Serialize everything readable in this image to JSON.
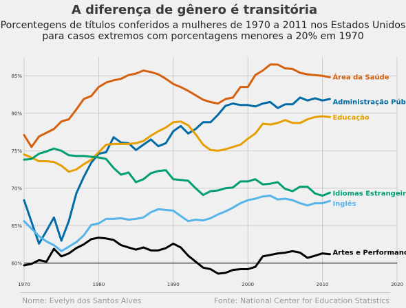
{
  "header": {
    "title": "A diferença de gênero é transitória",
    "subtitle_line1": "Porcentegens de títulos conferidos a mulheres de 1970 a 2011 nos Estados Unidos",
    "subtitle_line2": "para casos extremos com porcentagens menores a 20% em 1970"
  },
  "footer": {
    "left": "Nome: Evelyn dos Santos Alves",
    "right": "Fonte: National Center for Education Statistics"
  },
  "chart_data": {
    "type": "line",
    "xlim": [
      1970,
      2020
    ],
    "ylim": [
      57.5,
      87.5
    ],
    "x_ticks": [
      "1970",
      "1980",
      "1990",
      "2000",
      "2010",
      "2020"
    ],
    "y_ticks": [
      "60%",
      "65%",
      "70%",
      "75%",
      "80%",
      "85%"
    ],
    "grid": true,
    "years": [
      1970,
      1971,
      1972,
      1973,
      1974,
      1975,
      1976,
      1977,
      1978,
      1979,
      1980,
      1981,
      1982,
      1983,
      1984,
      1985,
      1986,
      1987,
      1988,
      1989,
      1990,
      1991,
      1992,
      1993,
      1994,
      1995,
      1996,
      1997,
      1998,
      1999,
      2000,
      2001,
      2002,
      2003,
      2004,
      2005,
      2006,
      2007,
      2008,
      2009,
      2010,
      2011
    ],
    "series": [
      {
        "name": "Área da Saúde",
        "color": "#d5600e",
        "values": [
          77.1,
          75.5,
          76.9,
          77.4,
          77.9,
          78.9,
          79.2,
          80.5,
          81.9,
          82.3,
          83.5,
          84.1,
          84.4,
          84.6,
          85.1,
          85.3,
          85.7,
          85.5,
          85.2,
          84.6,
          83.9,
          83.5,
          83.0,
          82.4,
          81.8,
          81.5,
          81.3,
          81.9,
          82.1,
          83.5,
          83.5,
          85.1,
          85.7,
          86.5,
          86.5,
          86.0,
          85.9,
          85.4,
          85.2,
          85.1,
          85.0,
          84.8
        ]
      },
      {
        "name": "Administração Pública",
        "color": "#006ba4",
        "values": [
          68.4,
          65.5,
          62.6,
          64.3,
          66.1,
          63.0,
          65.6,
          69.3,
          71.5,
          73.4,
          74.6,
          74.8,
          76.8,
          76.1,
          76.0,
          75.1,
          75.8,
          76.5,
          75.6,
          76.0,
          77.6,
          78.3,
          77.3,
          77.9,
          78.8,
          78.8,
          79.8,
          81.0,
          81.3,
          81.1,
          81.1,
          80.9,
          81.3,
          81.5,
          80.7,
          81.2,
          81.2,
          82.1,
          81.7,
          82.0,
          81.7,
          81.9
        ]
      },
      {
        "name": "Educação",
        "color": "#e69f00",
        "values": [
          74.5,
          74.1,
          73.6,
          73.6,
          73.5,
          73.0,
          72.2,
          72.5,
          73.2,
          73.8,
          74.8,
          75.8,
          75.9,
          75.9,
          75.9,
          76.0,
          76.3,
          77.0,
          77.6,
          78.1,
          78.8,
          78.9,
          78.4,
          77.2,
          75.8,
          75.1,
          75.0,
          75.2,
          75.5,
          75.8,
          76.6,
          77.3,
          78.6,
          78.5,
          78.7,
          79.1,
          78.7,
          78.7,
          79.2,
          79.5,
          79.6,
          79.5
        ]
      },
      {
        "name": "Idiomas Estrangeiros",
        "color": "#009e73",
        "values": [
          73.8,
          73.9,
          74.6,
          74.9,
          75.3,
          75.0,
          74.4,
          74.3,
          74.3,
          74.2,
          74.1,
          73.9,
          72.7,
          71.8,
          72.1,
          70.8,
          71.2,
          72.0,
          72.3,
          72.4,
          71.2,
          71.1,
          71.0,
          70.0,
          69.1,
          69.6,
          69.7,
          70.0,
          70.1,
          70.9,
          70.9,
          71.2,
          70.5,
          70.6,
          70.8,
          69.9,
          69.6,
          70.2,
          70.2,
          69.3,
          69.0,
          69.4
        ]
      },
      {
        "name": "Inglês",
        "color": "#56b4e9",
        "values": [
          65.6,
          64.6,
          63.6,
          62.9,
          62.4,
          61.6,
          62.2,
          62.8,
          63.7,
          65.1,
          65.3,
          65.9,
          65.9,
          66.0,
          65.8,
          65.9,
          66.1,
          66.8,
          67.2,
          67.1,
          67.0,
          66.3,
          65.6,
          65.8,
          65.7,
          66.0,
          66.5,
          66.9,
          67.4,
          68.0,
          68.4,
          68.6,
          68.9,
          69.0,
          68.5,
          68.6,
          68.4,
          68.0,
          67.7,
          68.0,
          68.0,
          68.3
        ]
      },
      {
        "name": "Artes e Performance",
        "color": "#000000",
        "values": [
          59.7,
          59.9,
          60.4,
          60.2,
          61.9,
          60.9,
          61.3,
          62.0,
          62.5,
          63.2,
          63.4,
          63.3,
          63.1,
          62.4,
          62.1,
          61.8,
          62.1,
          61.7,
          61.7,
          62.0,
          62.6,
          62.1,
          61.0,
          60.2,
          59.4,
          59.2,
          58.6,
          58.7,
          59.1,
          59.2,
          59.2,
          59.5,
          60.9,
          61.1,
          61.3,
          61.4,
          61.6,
          61.4,
          60.7,
          61.0,
          61.3,
          61.2
        ]
      }
    ]
  }
}
